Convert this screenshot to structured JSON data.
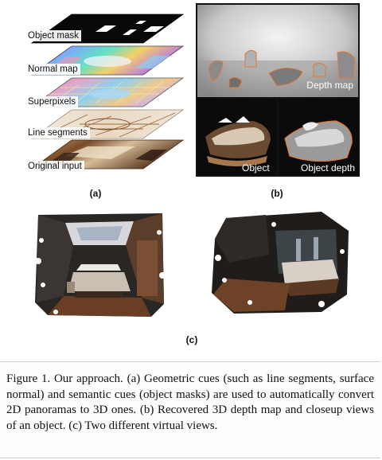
{
  "panel_a": {
    "layers": [
      {
        "label": "Object mask"
      },
      {
        "label": "Normal map"
      },
      {
        "label": "Superpixels"
      },
      {
        "label": "Line segments"
      },
      {
        "label": "Original input"
      }
    ],
    "sublabel": "(a)"
  },
  "panel_b": {
    "depth_map_label": "Depth map",
    "object_label": "Object",
    "object_depth_label": "Object depth",
    "sublabel": "(b)"
  },
  "panel_c": {
    "sublabel": "(c)"
  },
  "caption": {
    "text": "Figure 1. Our approach. (a) Geometric cues (such as line segments, surface normal) and semantic cues (object masks) are used to automatically convert 2D panoramas to 3D ones. (b) Recovered 3D depth map and closeup views of an object. (c) Two different virtual views."
  }
}
